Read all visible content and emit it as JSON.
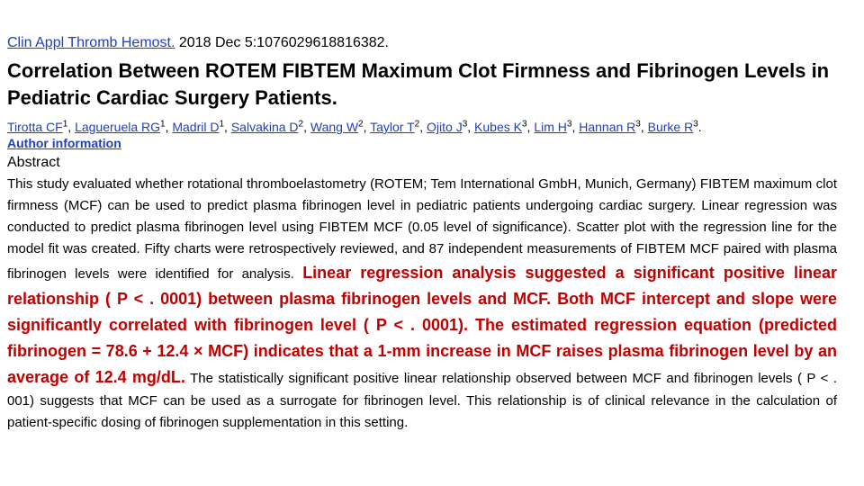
{
  "citation": {
    "journal": "Clin Appl Thromb Hemost.",
    "details": " 2018 Dec 5:1076029618816382."
  },
  "title": "Correlation Between ROTEM FIBTEM Maximum Clot Firmness and Fibrinogen Levels in Pediatric Cardiac Surgery Patients.",
  "authors": [
    {
      "name": "Tirotta CF",
      "sup": "1"
    },
    {
      "name": "Lagueruela RG",
      "sup": "1"
    },
    {
      "name": "Madril D",
      "sup": "1"
    },
    {
      "name": "Salvakina D",
      "sup": "2"
    },
    {
      "name": "Wang W",
      "sup": "2"
    },
    {
      "name": "Taylor T",
      "sup": "2"
    },
    {
      "name": "Ojito J",
      "sup": "3"
    },
    {
      "name": "Kubes K",
      "sup": "3"
    },
    {
      "name": "Lim H",
      "sup": "3"
    },
    {
      "name": "Hannan R",
      "sup": "3"
    },
    {
      "name": "Burke R",
      "sup": "3"
    }
  ],
  "author_info_label": "Author information",
  "abstract": {
    "heading": "Abstract",
    "part1": "This study evaluated whether rotational thromboelastometry (ROTEM; Tem International GmbH, Munich, Germany) FIBTEM maximum clot firmness (MCF) can be used to predict plasma fibrinogen level in pediatric patients undergoing cardiac surgery. Linear regression was conducted to predict plasma fibrinogen level using FIBTEM MCF (0.05 level of significance). Scatter plot with the regression line for the model fit was created. Fifty charts were retrospectively reviewed, and 87 independent measurements of FIBTEM MCF paired with plasma fibrinogen levels were identified for analysis. ",
    "highlight": "Linear regression analysis suggested a significant positive linear relationship ( P < . 0001) between plasma fibrinogen levels and MCF. Both MCF intercept and slope were significantly correlated with fibrinogen level ( P < . 0001). The estimated regression equation (predicted fibrinogen = 78.6 + 12.4 × MCF) indicates that a 1-mm increase in MCF raises plasma fibrinogen level by an average of 12.4 mg/dL.",
    "part2": " The statistically significant positive linear relationship observed between MCF and fibrinogen levels ( P < . 001) suggests that MCF can be used as a surrogate for fibrinogen level. This relationship is of clinical relevance in the calculation of patient-specific dosing of fibrinogen supplementation in this setting."
  },
  "colors": {
    "link": "#1f3fbf",
    "highlight": "#c00000"
  }
}
